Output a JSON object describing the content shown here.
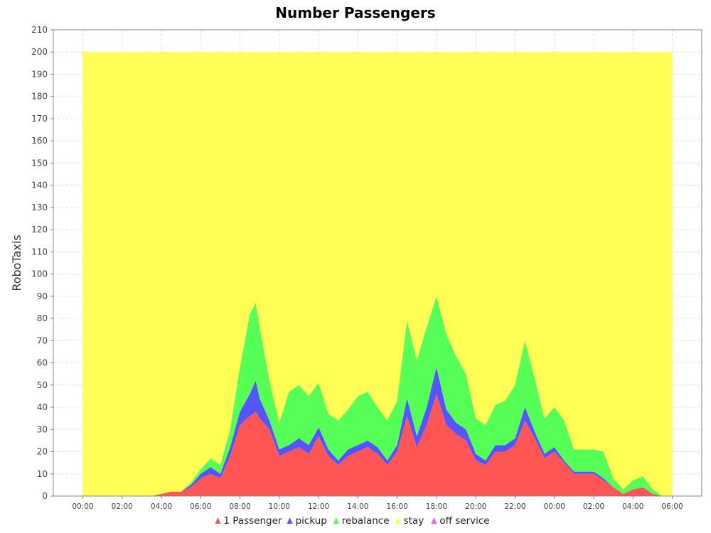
{
  "chart_data": {
    "type": "area",
    "stacked": true,
    "title": "Number Passengers",
    "xlabel": "",
    "ylabel": "RoboTaxis",
    "ylim": [
      0,
      210
    ],
    "yticks": [
      0,
      10,
      20,
      30,
      40,
      50,
      60,
      70,
      80,
      90,
      100,
      110,
      120,
      130,
      140,
      150,
      160,
      170,
      180,
      190,
      200,
      210
    ],
    "xlim_hours": [
      -1.5,
      31.5
    ],
    "xticks": [
      "00:00",
      "02:00",
      "04:00",
      "06:00",
      "08:00",
      "10:00",
      "12:00",
      "14:00",
      "16:00",
      "18:00",
      "20:00",
      "22:00",
      "00:00",
      "02:00",
      "04:00",
      "06:00"
    ],
    "xtick_hours": [
      0,
      2,
      4,
      6,
      8,
      10,
      12,
      14,
      16,
      18,
      20,
      22,
      24,
      26,
      28,
      30
    ],
    "grid": true,
    "legend_position": "bottom",
    "x_hours": [
      0,
      3.5,
      4,
      4.5,
      5,
      5.5,
      6,
      6.5,
      7,
      7.5,
      8,
      8.5,
      8.8,
      9,
      9.5,
      10,
      10.5,
      11,
      11.5,
      12,
      12.5,
      13,
      13.5,
      14,
      14.5,
      15,
      15.5,
      16,
      16.5,
      17,
      17.5,
      18,
      18.5,
      19,
      19.5,
      20,
      20.5,
      21,
      21.5,
      22,
      22.5,
      23,
      23.5,
      24,
      24.5,
      25,
      25.5,
      26,
      26.5,
      27,
      27.5,
      28,
      28.5,
      29,
      29.5,
      30
    ],
    "series": [
      {
        "name": "1 Passenger",
        "color": "#ff5555",
        "values": [
          0,
          0,
          1,
          2,
          2,
          4,
          8,
          10,
          8,
          18,
          32,
          36,
          38,
          35,
          30,
          18,
          20,
          22,
          19,
          27,
          18,
          14,
          18,
          20,
          22,
          19,
          14,
          20,
          36,
          22,
          32,
          46,
          32,
          28,
          25,
          16,
          14,
          20,
          20,
          23,
          34,
          26,
          17,
          20,
          15,
          10,
          10,
          10,
          7,
          4,
          1,
          3,
          4,
          1,
          0,
          0
        ]
      },
      {
        "name": "pickup",
        "color": "#5555ff",
        "values": [
          0,
          0,
          0,
          0,
          0,
          1,
          2,
          3,
          2,
          4,
          6,
          10,
          14,
          9,
          4,
          3,
          3,
          4,
          4,
          4,
          3,
          2,
          3,
          3,
          3,
          3,
          2,
          3,
          8,
          5,
          8,
          12,
          7,
          5,
          5,
          3,
          2,
          3,
          3,
          3,
          6,
          3,
          2,
          2,
          1,
          1,
          1,
          1,
          1,
          0,
          0,
          0,
          0,
          0,
          0,
          0
        ]
      },
      {
        "name": "rebalance",
        "color": "#55ff55",
        "values": [
          0,
          0,
          0,
          0,
          0,
          1,
          2,
          4,
          4,
          8,
          20,
          36,
          35,
          32,
          18,
          12,
          24,
          24,
          22,
          20,
          16,
          18,
          18,
          22,
          22,
          18,
          18,
          20,
          35,
          34,
          36,
          32,
          34,
          30,
          25,
          16,
          16,
          18,
          20,
          24,
          30,
          24,
          16,
          18,
          18,
          10,
          10,
          10,
          12,
          4,
          2,
          4,
          5,
          2,
          0,
          0
        ]
      },
      {
        "name": "stay",
        "color": "#ffff55",
        "values": [
          200,
          200,
          199,
          198,
          198,
          194,
          188,
          183,
          186,
          170,
          142,
          118,
          113,
          124,
          148,
          167,
          153,
          150,
          155,
          149,
          163,
          166,
          161,
          155,
          153,
          160,
          166,
          157,
          121,
          139,
          124,
          110,
          127,
          137,
          145,
          165,
          168,
          159,
          157,
          150,
          130,
          147,
          165,
          160,
          166,
          179,
          179,
          179,
          180,
          192,
          197,
          193,
          191,
          197,
          200,
          200
        ]
      },
      {
        "name": "off service",
        "color": "#ff55ff",
        "values": [
          0,
          0,
          0,
          0,
          0,
          0,
          0,
          0,
          0,
          0,
          0,
          0,
          0,
          0,
          0,
          0,
          0,
          0,
          0,
          0,
          0,
          0,
          0,
          0,
          0,
          0,
          0,
          0,
          0,
          0,
          0,
          0,
          0,
          0,
          0,
          0,
          0,
          0,
          0,
          0,
          0,
          0,
          0,
          0,
          0,
          0,
          0,
          0,
          0,
          0,
          0,
          0,
          0,
          0,
          0,
          0
        ]
      }
    ]
  }
}
